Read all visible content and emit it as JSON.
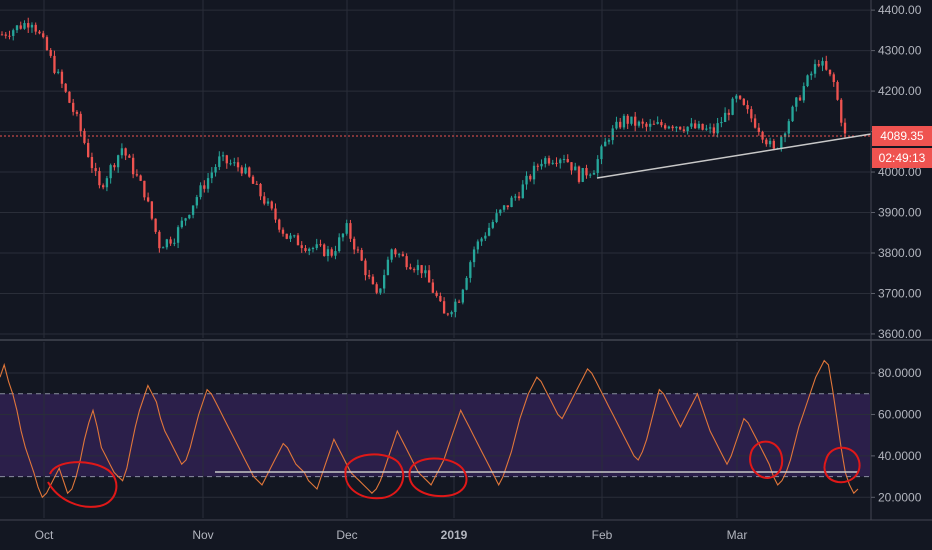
{
  "colors": {
    "background": "#131722",
    "grid": "#2a2e39",
    "axis_text": "#b2b5be",
    "up": "#26a69a",
    "down": "#ef5350",
    "rsi_line": "#e0763a",
    "rsi_band": "#2b1f4a",
    "annotation_red": "#e01818",
    "trendline": "#c8c8c8",
    "price_tag": "#ef5350"
  },
  "chart_data": [
    {
      "type": "candlestick",
      "title": "",
      "y_axis_ticks": [
        "4400.00",
        "4300.00",
        "4200.00",
        "4100.00",
        "4000.00",
        "3900.00",
        "3800.00",
        "3700.00",
        "3600.00"
      ],
      "ylim": [
        3590,
        4425
      ],
      "x_axis_labels": [
        "Oct",
        "Nov",
        "Dec",
        "2019",
        "Feb",
        "Mar"
      ],
      "last_price": 4089.35,
      "last_price_label": "4089.35",
      "countdown_label": "02:49:13",
      "anchors": [
        {
          "t": 0,
          "v": 4340
        },
        {
          "t": 8,
          "v": 4375
        },
        {
          "t": 12,
          "v": 4300
        },
        {
          "t": 20,
          "v": 4130
        },
        {
          "t": 26,
          "v": 3960
        },
        {
          "t": 32,
          "v": 4060
        },
        {
          "t": 38,
          "v": 3950
        },
        {
          "t": 42,
          "v": 3820
        },
        {
          "t": 46,
          "v": 3840
        },
        {
          "t": 52,
          "v": 3940
        },
        {
          "t": 58,
          "v": 4030
        },
        {
          "t": 64,
          "v": 4010
        },
        {
          "t": 70,
          "v": 3930
        },
        {
          "t": 76,
          "v": 3840
        },
        {
          "t": 82,
          "v": 3815
        },
        {
          "t": 88,
          "v": 3800
        },
        {
          "t": 92,
          "v": 3860
        },
        {
          "t": 95,
          "v": 3800
        },
        {
          "t": 100,
          "v": 3690
        },
        {
          "t": 104,
          "v": 3810
        },
        {
          "t": 108,
          "v": 3780
        },
        {
          "t": 112,
          "v": 3760
        },
        {
          "t": 116,
          "v": 3690
        },
        {
          "t": 118,
          "v": 3645
        },
        {
          "t": 122,
          "v": 3690
        },
        {
          "t": 126,
          "v": 3810
        },
        {
          "t": 132,
          "v": 3890
        },
        {
          "t": 138,
          "v": 3950
        },
        {
          "t": 144,
          "v": 4030
        },
        {
          "t": 150,
          "v": 4040
        },
        {
          "t": 154,
          "v": 3990
        },
        {
          "t": 158,
          "v": 4010
        },
        {
          "t": 162,
          "v": 4090
        },
        {
          "t": 166,
          "v": 4130
        },
        {
          "t": 172,
          "v": 4110
        },
        {
          "t": 178,
          "v": 4120
        },
        {
          "t": 184,
          "v": 4110
        },
        {
          "t": 190,
          "v": 4100
        },
        {
          "t": 196,
          "v": 4180
        },
        {
          "t": 202,
          "v": 4110
        },
        {
          "t": 206,
          "v": 4050
        },
        {
          "t": 210,
          "v": 4130
        },
        {
          "t": 214,
          "v": 4210
        },
        {
          "t": 218,
          "v": 4275
        },
        {
          "t": 222,
          "v": 4220
        },
        {
          "t": 225,
          "v": 4089
        }
      ]
    },
    {
      "type": "line",
      "title": "",
      "y_axis_ticks": [
        "80.0000",
        "60.0000",
        "40.0000",
        "20.0000"
      ],
      "ylim": [
        10,
        95
      ],
      "overbought": 70,
      "oversold": 30,
      "series": [
        {
          "values": [
            78,
            84,
            76,
            70,
            62,
            52,
            44,
            38,
            32,
            25,
            20,
            22,
            26,
            30,
            34,
            28,
            22,
            24,
            30,
            38,
            48,
            56,
            62,
            54,
            44,
            40,
            36,
            32,
            30,
            28,
            34,
            44,
            54,
            62,
            68,
            74,
            70,
            66,
            58,
            52,
            48,
            44,
            40,
            36,
            38,
            44,
            52,
            60,
            66,
            72,
            70,
            66,
            62,
            58,
            54,
            50,
            46,
            42,
            38,
            34,
            30,
            28,
            26,
            30,
            34,
            38,
            42,
            46,
            44,
            40,
            36,
            34,
            32,
            28,
            26,
            24,
            30,
            36,
            42,
            48,
            44,
            40,
            36,
            32,
            30,
            28,
            26,
            24,
            22,
            24,
            28,
            34,
            40,
            46,
            52,
            48,
            44,
            40,
            36,
            32,
            30,
            28,
            26,
            30,
            34,
            38,
            44,
            50,
            56,
            62,
            58,
            54,
            50,
            46,
            42,
            38,
            34,
            30,
            26,
            30,
            36,
            42,
            50,
            58,
            64,
            70,
            74,
            78,
            76,
            72,
            68,
            64,
            60,
            58,
            62,
            66,
            70,
            74,
            78,
            82,
            80,
            76,
            72,
            68,
            64,
            60,
            56,
            52,
            48,
            44,
            40,
            38,
            42,
            48,
            56,
            64,
            72,
            70,
            66,
            62,
            58,
            54,
            58,
            62,
            66,
            70,
            64,
            58,
            52,
            48,
            44,
            40,
            36,
            40,
            46,
            52,
            58,
            56,
            52,
            48,
            44,
            40,
            36,
            30,
            26,
            28,
            32,
            38,
            46,
            54,
            60,
            66,
            72,
            78,
            82,
            86,
            84,
            72,
            58,
            44,
            32,
            26,
            22,
            24
          ]
        }
      ]
    }
  ]
}
